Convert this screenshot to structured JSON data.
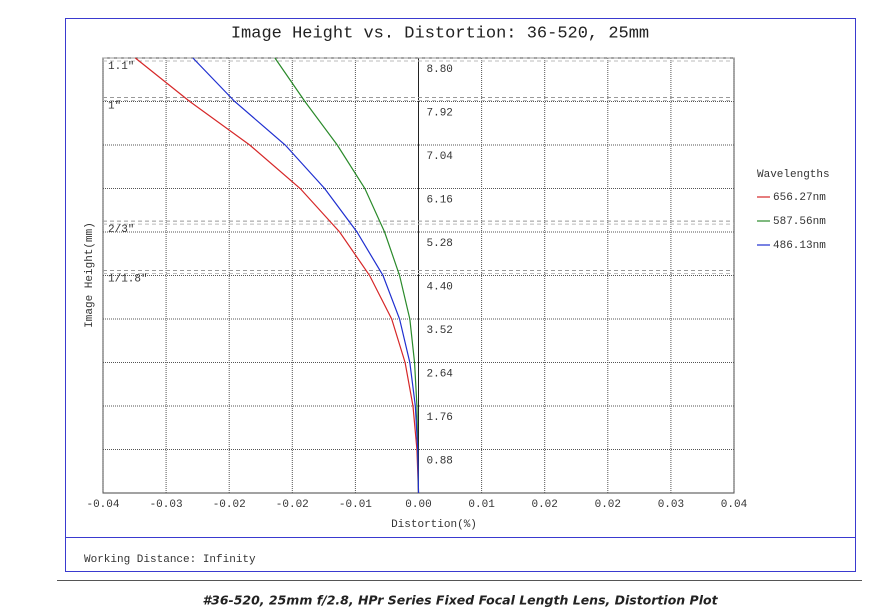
{
  "chart_data": {
    "type": "line",
    "title": "Image Height vs. Distortion: 36-520, 25mm",
    "x_label": "Distortion(%)",
    "y_label": "Image Height(mm)",
    "legend_title": "Wavelengths",
    "legend": "right",
    "grid": true,
    "heights": [
      0,
      0.88,
      1.76,
      2.64,
      3.52,
      4.4,
      5.28,
      6.16,
      7.04,
      7.92,
      8.8
    ],
    "series": [
      {
        "name": "656.27nm",
        "color": "#d62728",
        "values": [
          0,
          -0.0002,
          -0.0007,
          -0.0017,
          -0.0034,
          -0.0062,
          -0.01,
          -0.015,
          -0.0214,
          -0.029,
          -0.0359
        ]
      },
      {
        "name": "587.56nm",
        "color": "#2a8a2a",
        "values": [
          0,
          -0.0001,
          -0.0002,
          -0.0005,
          -0.0011,
          -0.0024,
          -0.0043,
          -0.0068,
          -0.0103,
          -0.0144,
          -0.0182
        ]
      },
      {
        "name": "486.13nm",
        "color": "#1f2fd0",
        "values": [
          0,
          -0.0001,
          -0.0004,
          -0.0011,
          -0.0024,
          -0.0045,
          -0.0078,
          -0.0119,
          -0.0169,
          -0.0233,
          -0.0286
        ]
      }
    ],
    "xlim": [
      -0.04,
      0.04
    ],
    "xticks": [
      -0.04,
      {
        "value": -0.032,
        "label": "-0.03"
      },
      {
        "value": -0.024,
        "label": "-0.02"
      },
      {
        "value": -0.016,
        "label": "-0.02"
      },
      {
        "value": -0.008,
        "label": "-0.01"
      },
      {
        "value": 0,
        "label": "0.00"
      },
      {
        "value": 0.008,
        "label": "0.01"
      },
      {
        "value": 0.016,
        "label": "0.02"
      },
      {
        "value": 0.024,
        "label": "0.02"
      },
      {
        "value": 0.032,
        "label": "0.03"
      },
      0.04
    ],
    "ylim": [
      0,
      8.8
    ],
    "yticks": [
      0.88,
      1.76,
      2.64,
      3.52,
      {
        "value": 4.4,
        "label": "4.40"
      },
      5.28,
      6.16,
      7.04,
      7.92,
      {
        "value": 8.8,
        "label": "8.80"
      }
    ],
    "sensors": [
      {
        "label": "1.1\"",
        "value": 8.8
      },
      {
        "label": "1\"",
        "value": 8.0
      },
      {
        "label": "2/3\"",
        "value": 5.5
      },
      {
        "label": "1/1.8\"",
        "value": 4.5
      }
    ],
    "footer": "Working Distance: Infinity",
    "caption": "#36-520, 25mm f/2.8, HPr Series Fixed Focal Length Lens, Distortion Plot"
  }
}
